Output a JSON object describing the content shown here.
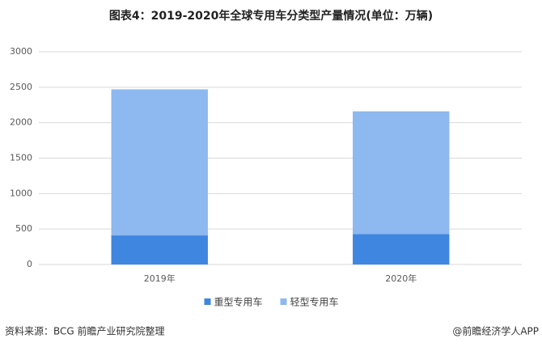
{
  "chart_data": {
    "type": "stacked_bar",
    "title": "图表4：2019-2020年全球专用车分类型产量情况(单位：万辆)",
    "categories": [
      "2019年",
      "2020年"
    ],
    "series": [
      {
        "name": "重型专用车",
        "color": "#3f86e0",
        "values": [
          410,
          430
        ]
      },
      {
        "name": "轻型专用车",
        "color": "#8db8f0",
        "values": [
          2060,
          1730
        ]
      }
    ],
    "ylim": [
      0,
      3000
    ],
    "yticks": [
      0,
      500,
      1000,
      1500,
      2000,
      2500,
      3000
    ],
    "grid": true,
    "legend": "bottom"
  },
  "footer": {
    "source": "资料来源：BCG 前瞻产业研究院整理",
    "credit": "@前瞻经济学人APP"
  }
}
